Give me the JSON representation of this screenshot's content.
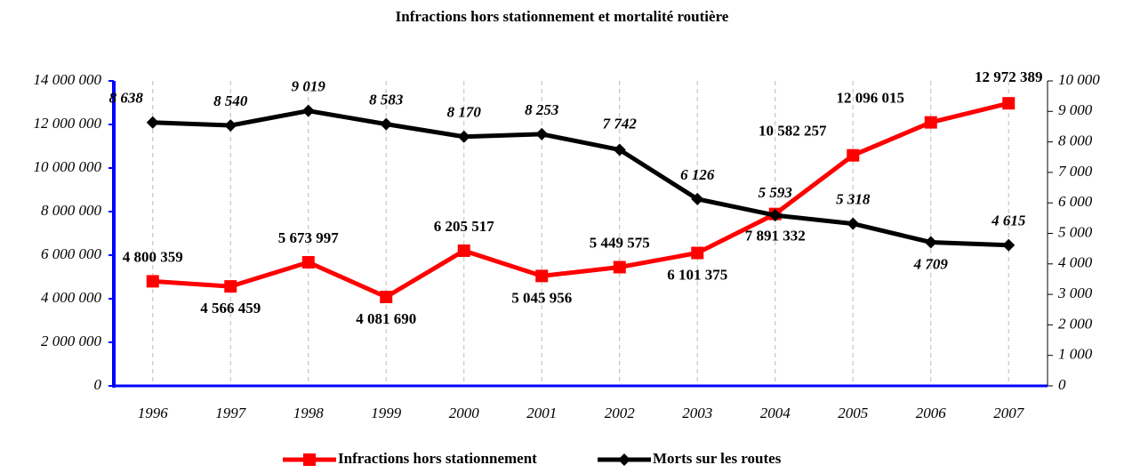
{
  "chart_data": {
    "type": "line",
    "title": "Infractions hors stationnement et mortalité routière",
    "categories": [
      "1996",
      "1997",
      "1998",
      "1999",
      "2000",
      "2001",
      "2002",
      "2003",
      "2004",
      "2005",
      "2006",
      "2007"
    ],
    "series": [
      {
        "name": "Infractions hors stationnement",
        "color": "#ff0000",
        "axis": "y",
        "values": [
          4800359,
          4566459,
          5673997,
          4081690,
          6205517,
          5045956,
          5449575,
          6101375,
          7891332,
          10582257,
          12096015,
          12972389
        ],
        "value_labels": [
          "4 800 359",
          "4 566 459",
          "5 673 997",
          "4 081 690",
          "6 205 517",
          "5 045 956",
          "5 449 575",
          "6 101 375",
          "7 891 332",
          "10 582 257",
          "12 096 015",
          "12 972 389"
        ]
      },
      {
        "name": "Morts sur les routes",
        "color": "#000000",
        "axis": "y2",
        "values": [
          8638,
          8540,
          9019,
          8583,
          8170,
          8253,
          7742,
          6126,
          5593,
          5318,
          4709,
          4615
        ],
        "value_labels": [
          "8 638",
          "8 540",
          "9 019",
          "8 583",
          "8 170",
          "8 253",
          "7 742",
          "6 126",
          "5 593",
          "5 318",
          "4 709",
          "4 615"
        ]
      }
    ],
    "ylim": [
      0,
      14000000
    ],
    "yticks": [
      0,
      {
        "value": 2000000,
        "label": "2 000 000"
      },
      {
        "value": 4000000,
        "label": "4 000 000"
      },
      {
        "value": 6000000,
        "label": "6 000 000"
      },
      {
        "value": 8000000,
        "label": "8 000 000"
      },
      {
        "value": 10000000,
        "label": "10 000 000"
      },
      {
        "value": 12000000,
        "label": "12 000 000"
      },
      {
        "value": 14000000,
        "label": "14 000 000"
      }
    ],
    "y2lim": [
      0,
      10000
    ],
    "y2ticks": [
      0,
      {
        "value": 1000,
        "label": "1 000"
      },
      {
        "value": 2000,
        "label": "2 000"
      },
      {
        "value": 3000,
        "label": "3 000"
      },
      {
        "value": 4000,
        "label": "4 000"
      },
      {
        "value": 5000,
        "label": "5 000"
      },
      {
        "value": 6000,
        "label": "6 000"
      },
      {
        "value": 7000,
        "label": "7 000"
      },
      {
        "value": 8000,
        "label": "8 000"
      },
      {
        "value": 9000,
        "label": "9 000"
      },
      {
        "value": 10000,
        "label": "10 000"
      }
    ],
    "grid": true,
    "legend": "bottom"
  }
}
